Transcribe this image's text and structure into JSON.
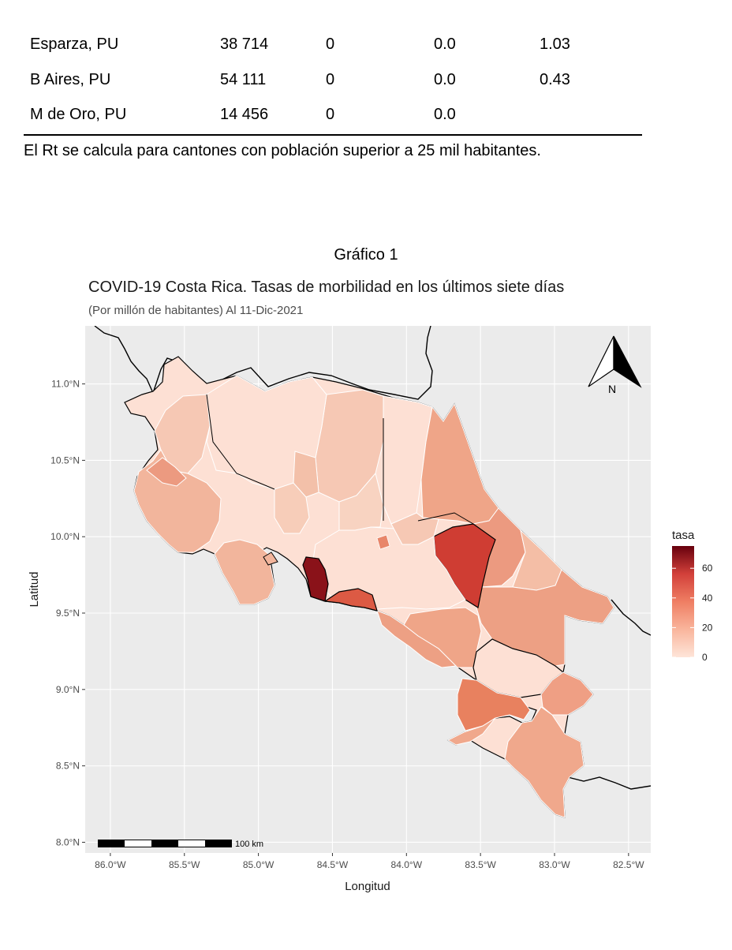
{
  "table": {
    "rows": [
      [
        "Esparza, PU",
        "38 714",
        "0",
        "0.0",
        "1.03"
      ],
      [
        "B Aires, PU",
        "54 111",
        "0",
        "0.0",
        "0.43"
      ],
      [
        "M de Oro, PU",
        "14 456",
        "0",
        "0.0",
        ""
      ]
    ],
    "note": "El Rt se calcula para cantones con población superior a 25 mil habitantes."
  },
  "figure_caption": "Gráfico 1",
  "chart_data": {
    "type": "choropleth",
    "title": "COVID-19 Costa Rica. Tasas de morbilidad en los últimos siete días",
    "subtitle": "(Por millón de habitantes) Al 11-Dic-2021",
    "xlabel": "Longitud",
    "ylabel": "Latitud",
    "x_ticks": [
      "86.0°W",
      "85.5°W",
      "85.0°W",
      "84.5°W",
      "84.0°W",
      "83.5°W",
      "83.0°W",
      "82.5°W"
    ],
    "x_tick_values": [
      -86.0,
      -85.5,
      -85.0,
      -84.5,
      -84.0,
      -83.5,
      -83.0,
      -82.5
    ],
    "y_ticks": [
      "11.0°N",
      "10.5°N",
      "10.0°N",
      "9.5°N",
      "9.0°N",
      "8.5°N",
      "8.0°N"
    ],
    "y_tick_values": [
      11.0,
      10.5,
      10.0,
      9.5,
      9.0,
      8.5,
      8.0
    ],
    "xlim": [
      -86.17,
      -82.35
    ],
    "ylim": [
      7.93,
      11.38
    ],
    "grid": true,
    "legend": {
      "title": "tasa",
      "ticks": [
        "60",
        "40",
        "20",
        "0"
      ],
      "tick_values": [
        60,
        40,
        20,
        0
      ],
      "range": [
        0,
        75
      ],
      "color_low": "#fee5d9",
      "color_high": "#67000d",
      "position": "right"
    },
    "north_arrow_label": "N",
    "scale_bar_label": "100 km",
    "colors": {
      "panel_bg": "#ebebeb",
      "grid_line": "#ffffff",
      "border": "#000000"
    }
  }
}
